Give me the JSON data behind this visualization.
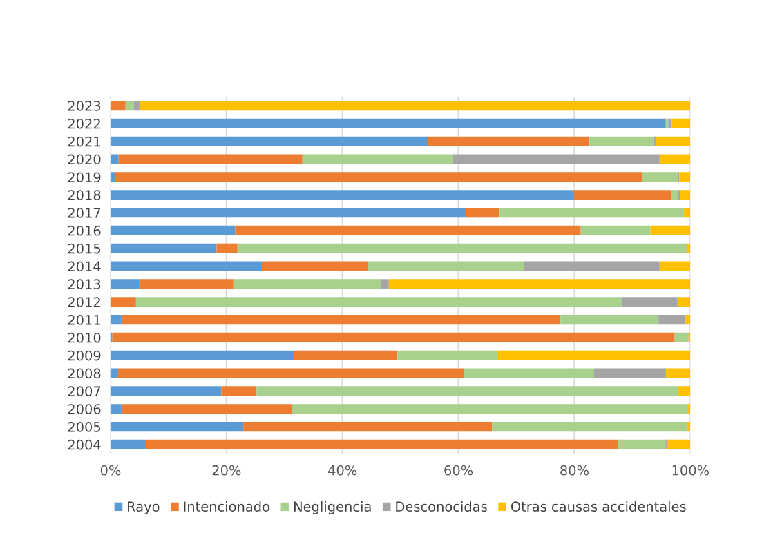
{
  "chart_data": {
    "type": "bar",
    "orientation": "horizontal",
    "stacked": true,
    "categories": [
      "2023",
      "2022",
      "2021",
      "2020",
      "2019",
      "2018",
      "2017",
      "2016",
      "2015",
      "2014",
      "2013",
      "2012",
      "2011",
      "2010",
      "2009",
      "2008",
      "2007",
      "2006",
      "2005",
      "2004"
    ],
    "series": [
      {
        "name": "Rayo",
        "color": "#5b9bd5",
        "values": [
          0,
          95.7,
          54.8,
          1.4,
          0.8,
          79.8,
          61.3,
          21.5,
          18.3,
          26.1,
          4.9,
          0,
          1.9,
          0.3,
          31.7,
          1.1,
          19.1,
          1.9,
          22.9,
          6.1
        ]
      },
      {
        "name": "Intencionado",
        "color": "#ed7d31",
        "values": [
          2.6,
          0.1,
          27.8,
          31.7,
          90.9,
          16.9,
          5.8,
          59.6,
          3.6,
          18.3,
          16.3,
          4.4,
          75.7,
          97.0,
          17.8,
          59.8,
          6.1,
          29.4,
          42.9,
          81.4
        ]
      },
      {
        "name": "Negligencia",
        "color": "#a9d18e",
        "values": [
          1.4,
          0.4,
          11.0,
          25.9,
          6.1,
          1.2,
          31.8,
          12.0,
          77.5,
          26.9,
          25.4,
          83.7,
          16.9,
          2.4,
          17.2,
          22.5,
          72.7,
          68.3,
          33.7,
          8.2
        ]
      },
      {
        "name": "Desconocidas",
        "color": "#a5a5a5",
        "values": [
          1.0,
          0.6,
          0.4,
          35.7,
          0.3,
          0.4,
          0,
          0,
          0,
          23.4,
          1.4,
          9.7,
          4.7,
          0,
          0,
          12.4,
          0,
          0,
          0,
          0.3
        ]
      },
      {
        "name": "Otras causas accidentales",
        "color": "#ffc000",
        "values": [
          95.0,
          3.2,
          6.0,
          5.3,
          1.9,
          1.7,
          1.1,
          6.9,
          0.6,
          5.3,
          52.0,
          2.2,
          0.8,
          0.3,
          33.3,
          4.2,
          2.1,
          0.4,
          0.5,
          4.0
        ]
      }
    ],
    "xlim": [
      0,
      100
    ],
    "xticks": [
      {
        "value": 0,
        "label": "0%"
      },
      {
        "value": 20,
        "label": "20%"
      },
      {
        "value": 40,
        "label": "40%"
      },
      {
        "value": 60,
        "label": "60%"
      },
      {
        "value": 80,
        "label": "80%"
      },
      {
        "value": 100,
        "label": "100%"
      }
    ],
    "grid": "x",
    "legend": "bottom"
  }
}
